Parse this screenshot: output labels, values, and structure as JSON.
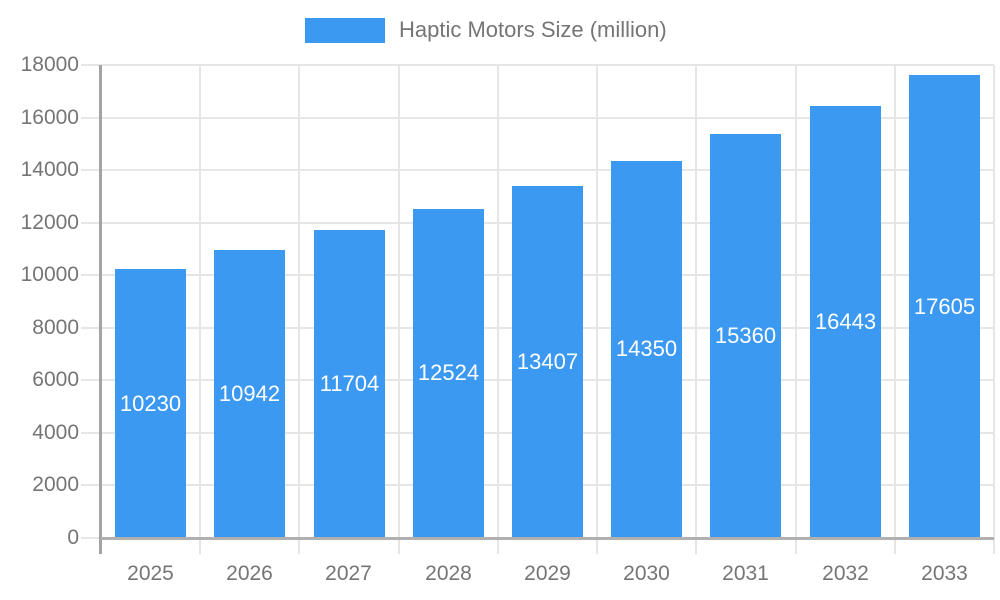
{
  "legend": {
    "label": "Haptic Motors Size (million)"
  },
  "colors": {
    "bar": "#3b99f1",
    "grid": "#e6e6e6",
    "axis_y": "#a3a3a3",
    "axis_x": "#b0b0b0",
    "text": "#757575",
    "value_label": "#ffffff",
    "background": "#ffffff"
  },
  "chart_data": {
    "type": "bar",
    "title": "Haptic Motors Size (million)",
    "series_name": "Haptic Motors Size (million)",
    "categories": [
      "2025",
      "2026",
      "2027",
      "2028",
      "2029",
      "2030",
      "2031",
      "2032",
      "2033"
    ],
    "values": [
      10230,
      10942,
      11704,
      12524,
      13407,
      14350,
      15360,
      16443,
      17605
    ],
    "xlabel": "",
    "ylabel": "",
    "ylim": [
      0,
      18000
    ],
    "y_tick_step": 2000,
    "y_ticks": [
      "0",
      "2000",
      "4000",
      "6000",
      "8000",
      "10000",
      "12000",
      "14000",
      "16000",
      "18000"
    ],
    "grid": true,
    "legend_position": "top",
    "value_labels_position": "inside-center"
  }
}
